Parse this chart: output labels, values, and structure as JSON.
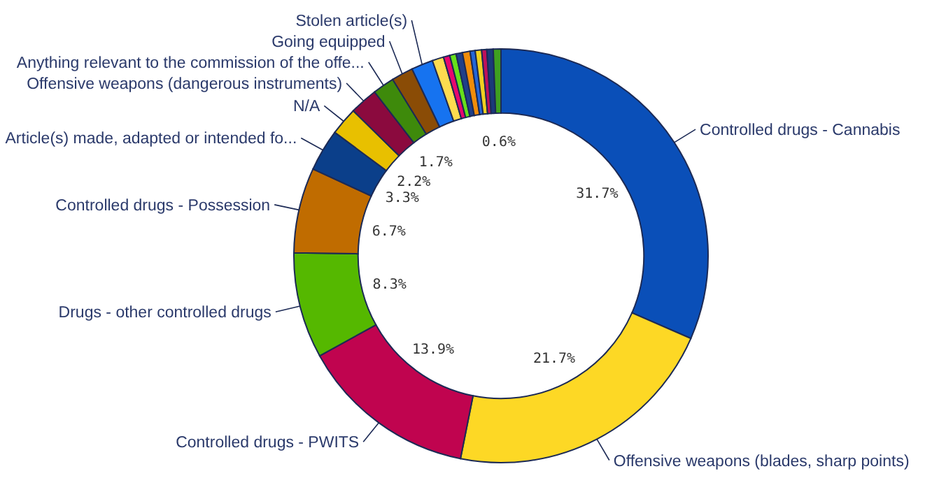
{
  "chart_data": {
    "type": "donut",
    "categories": [
      "Controlled drugs - Cannabis",
      "Offensive weapons (blades, sharp points)",
      "Controlled drugs - PWITS",
      "Drugs - other controlled drugs",
      "Controlled drugs - Possession",
      "Article(s) made, adapted or intended fo...",
      "N/A",
      "Offensive weapons (dangerous instruments)",
      "Anything relevant to the commission of the offe...",
      "Going equipped",
      "Stolen article(s)",
      null,
      null,
      null,
      null,
      null,
      null,
      null,
      null,
      null,
      null
    ],
    "values": [
      31.7,
      21.7,
      13.9,
      8.3,
      6.7,
      3.3,
      2.2,
      2.2,
      1.7,
      1.7,
      1.7,
      0.9,
      0.5,
      0.5,
      0.5,
      0.6,
      0.4,
      0.5,
      0.4,
      0.5,
      0.6
    ],
    "colors": [
      "#0a4fb8",
      "#fdd825",
      "#c0044f",
      "#55b800",
      "#c06c00",
      "#0b3f8a",
      "#e8c000",
      "#8b0a3e",
      "#3e8a0b",
      "#8a4c06",
      "#1673f0",
      "#fddc4f",
      "#e8066e",
      "#66e01a",
      "#1f3f8a",
      "#f08c0a",
      "#2466d8",
      "#f0d020",
      "#c0105a",
      "#1a3a7a",
      "#3fa020"
    ],
    "value_labels": [
      "31.7%",
      "21.7%",
      "13.9%",
      "8.3%",
      "6.7%",
      "3.3%",
      "2.2%",
      null,
      "1.7%",
      null,
      null,
      null,
      null,
      null,
      null,
      null,
      null,
      null,
      null,
      null,
      "0.6%"
    ]
  }
}
